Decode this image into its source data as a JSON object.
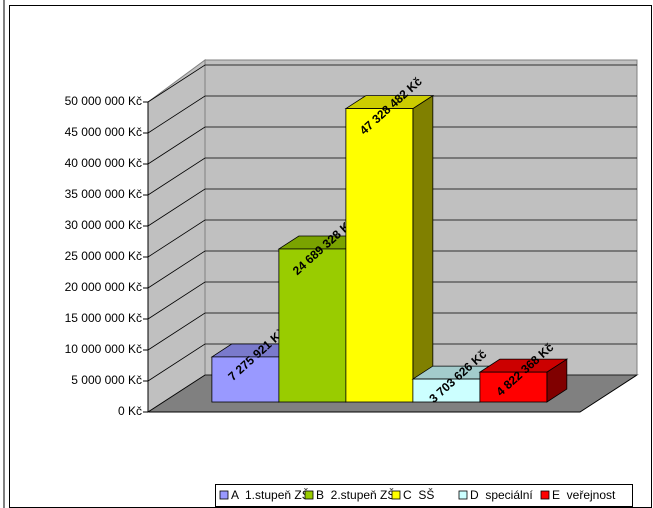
{
  "chart_data": {
    "type": "bar3d",
    "categories": [
      "A  1.stupeň ZŠ",
      "B  2.stupeň ZŠ",
      "C  SŠ",
      "D  speciální",
      "E  veřejnost"
    ],
    "values": [
      7275921,
      24689328,
      47328482,
      3703626,
      4822368
    ],
    "value_labels": [
      "7 275 921 Kč",
      "24 689 328 Kč",
      "47 328 482 Kč",
      "3 703 626 Kč",
      "4 822 368 Kč"
    ],
    "colors": [
      "#9999ff",
      "#99cc00",
      "#ffff00",
      "#ccffff",
      "#ff0000"
    ],
    "ylim": [
      0,
      50000000
    ],
    "yticks": [
      {
        "value": 0,
        "label": "0 Kč"
      },
      {
        "value": 5000000,
        "label": "5 000 000 Kč"
      },
      {
        "value": 10000000,
        "label": "10 000 000 Kč"
      },
      {
        "value": 15000000,
        "label": "15 000 000 Kč"
      },
      {
        "value": 20000000,
        "label": "20 000 000 Kč"
      },
      {
        "value": 25000000,
        "label": "25 000 000 Kč"
      },
      {
        "value": 30000000,
        "label": "30 000 000 Kč"
      },
      {
        "value": 35000000,
        "label": "35 000 000 Kč"
      },
      {
        "value": 40000000,
        "label": "40 000 000 Kč"
      },
      {
        "value": 45000000,
        "label": "45 000 000 Kč"
      },
      {
        "value": 50000000,
        "label": "50 000 000 Kč"
      }
    ],
    "grid": true,
    "legend": "bottom"
  }
}
